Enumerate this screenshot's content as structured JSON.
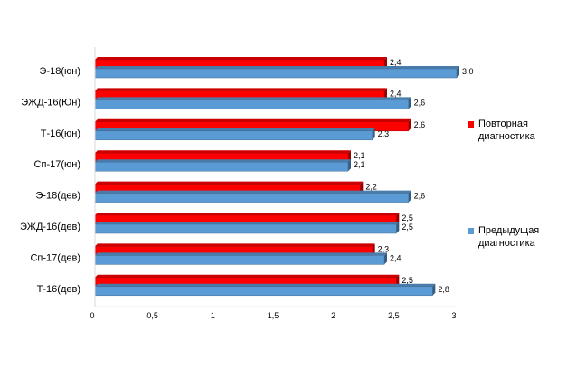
{
  "chart_data": {
    "type": "bar",
    "orientation": "horizontal",
    "categories": [
      "Т-16(дев)",
      "Сп-17(дев)",
      "ЭЖД-16(дев)",
      "Э-18(дев)",
      "Сп-17(юн)",
      "Т-16(юн)",
      "ЭЖД-16(Юн)",
      "Э-18(юн)"
    ],
    "series": [
      {
        "name": "Повторная диагностика",
        "color": "#ff0000",
        "values": [
          2.5,
          2.3,
          2.5,
          2.2,
          2.1,
          2.6,
          2.4,
          2.4
        ],
        "value_labels": [
          "2,5",
          "2,3",
          "2,5",
          "2,2",
          "2,1",
          "2,6",
          "2,4",
          "2,4"
        ]
      },
      {
        "name": "Предыдущая диагностика",
        "color": "#5b9bd5",
        "values": [
          2.8,
          2.4,
          2.5,
          2.6,
          2.1,
          2.3,
          2.6,
          3.0
        ],
        "value_labels": [
          "2,8",
          "2,4",
          "2,5",
          "2,6",
          "2,1",
          "2,3",
          "2,6",
          "3,0"
        ]
      }
    ],
    "xlim": [
      0,
      3
    ],
    "x_ticks": [
      "0",
      "0,5",
      "1",
      "1,5",
      "2",
      "2,5",
      "3"
    ],
    "grid": false,
    "legend": {
      "position": "right",
      "items": [
        {
          "line1": "Повторная",
          "line2": "диагностика",
          "color": "#ff0000"
        },
        {
          "line1": "Предыдущая",
          "line2": "диагностика",
          "color": "#5b9bd5"
        }
      ]
    }
  }
}
